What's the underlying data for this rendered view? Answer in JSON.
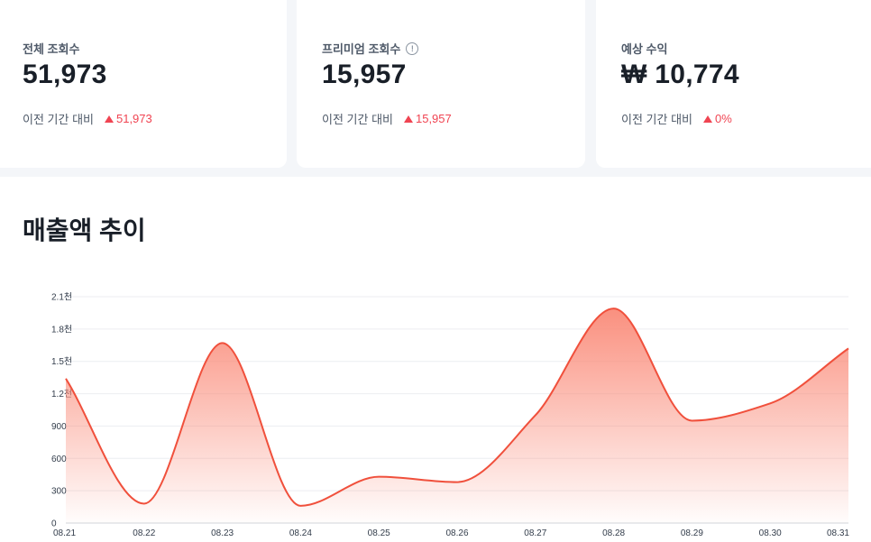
{
  "stats": [
    {
      "label": "전체 조회수",
      "value": "51,973",
      "compare_label": "이전 기간 대비",
      "delta": "51,973",
      "has_info": false
    },
    {
      "label": "프리미엄 조회수",
      "value": "15,957",
      "compare_label": "이전 기간 대비",
      "delta": "15,957",
      "has_info": true
    },
    {
      "label": "예상 수익",
      "value": "₩ 10,774",
      "compare_label": "이전 기간 대비",
      "delta": "0%",
      "has_info": false
    }
  ],
  "info_symbol": "!",
  "colors": {
    "accent": "#f04452",
    "line": "#f0503c",
    "fill_top": "#fa8a78"
  },
  "chart_section": {
    "title": "매출액 추이"
  },
  "chart_data": {
    "type": "area",
    "title": "매출액 추이",
    "categories": [
      "08.21",
      "08.22",
      "08.23",
      "08.24",
      "08.25",
      "08.26",
      "08.27",
      "08.28",
      "08.29",
      "08.30",
      "08.31"
    ],
    "values": [
      1340,
      180,
      1670,
      160,
      430,
      380,
      1000,
      1990,
      950,
      1110,
      1620
    ],
    "y_ticks": [
      0,
      300,
      600,
      900,
      1200,
      1500,
      1800,
      2100
    ],
    "y_tick_labels": [
      "0",
      "300",
      "600",
      "900",
      "1.2천",
      "1.5천",
      "1.8천",
      "2.1천"
    ],
    "ylim": [
      0,
      2100
    ],
    "grid": true,
    "smooth": true
  }
}
